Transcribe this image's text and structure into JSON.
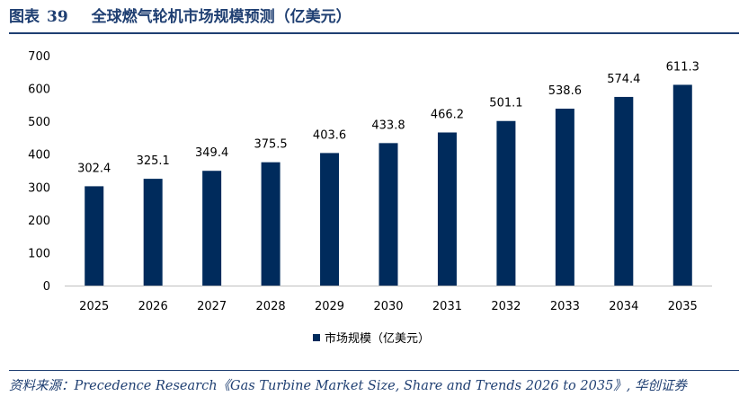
{
  "figure": {
    "label": "图表",
    "number": "39",
    "title": "全球燃气轮机市场规模预测（亿美元）"
  },
  "chart_data": {
    "type": "bar",
    "categories": [
      "2025",
      "2026",
      "2027",
      "2028",
      "2029",
      "2030",
      "2031",
      "2032",
      "2033",
      "2034",
      "2035"
    ],
    "series": [
      {
        "name": "市场规模（亿美元）",
        "values": [
          302.4,
          325.1,
          349.4,
          375.5,
          403.6,
          433.8,
          466.2,
          501.1,
          538.6,
          574.4,
          611.3
        ],
        "color": "#002B5C"
      }
    ],
    "ylim": [
      0,
      700
    ],
    "yticks": [
      0,
      100,
      200,
      300,
      400,
      500,
      600,
      700
    ],
    "data_labels": [
      "302.4",
      "325.1",
      "349.4",
      "375.5",
      "403.6",
      "433.8",
      "466.2",
      "501.1",
      "538.6",
      "574.4",
      "611.3"
    ],
    "grid": false,
    "legend_position": "bottom"
  },
  "source": "资料来源：Precedence Research《Gas Turbine Market Size, Share and Trends 2026 to 2035》, 华创证券",
  "colors": {
    "title": "#1F3F72",
    "bar": "#002B5C",
    "axis": "#BFBFBF"
  }
}
